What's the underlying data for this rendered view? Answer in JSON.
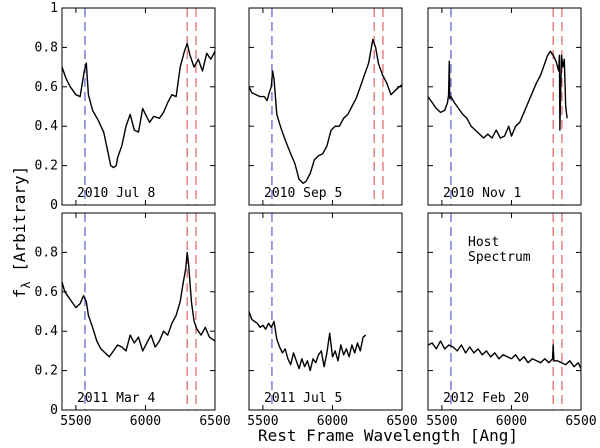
{
  "figure": {
    "ylabel_main": "f",
    "ylabel_sub": "λ",
    "ylabel_rest": " [Arbitrary]",
    "xlabel": "Rest Frame Wavelength [Ang]"
  },
  "chart_data": {
    "type": "line",
    "layout": "2 rows x 3 columns, shared axes",
    "xlim": [
      5400,
      6500
    ],
    "ylim": [
      0,
      1
    ],
    "x_ticks": [
      "5500",
      "6000",
      "6500"
    ],
    "y_ticks": [
      "0",
      "0.2",
      "0.4",
      "0.6",
      "0.8",
      "1"
    ],
    "colors": {
      "spectrum": "#000000",
      "blue_line": "#5b5bd6",
      "red_line": "#e06262"
    },
    "panels": [
      {
        "label": "2010 Jul 8",
        "blue_lines": [
          5565
        ],
        "red_lines": [
          6300,
          6363
        ],
        "annotation": "",
        "x": [
          5400,
          5430,
          5460,
          5500,
          5530,
          5560,
          5575,
          5590,
          5620,
          5660,
          5700,
          5730,
          5750,
          5770,
          5790,
          5800,
          5830,
          5860,
          5890,
          5920,
          5950,
          5980,
          6000,
          6030,
          6060,
          6100,
          6130,
          6160,
          6190,
          6220,
          6250,
          6280,
          6300,
          6320,
          6350,
          6380,
          6410,
          6440,
          6470,
          6500
        ],
        "y": [
          0.7,
          0.64,
          0.6,
          0.56,
          0.55,
          0.68,
          0.72,
          0.56,
          0.48,
          0.43,
          0.37,
          0.27,
          0.2,
          0.19,
          0.2,
          0.24,
          0.3,
          0.4,
          0.46,
          0.38,
          0.37,
          0.49,
          0.46,
          0.42,
          0.45,
          0.44,
          0.47,
          0.52,
          0.56,
          0.55,
          0.7,
          0.78,
          0.82,
          0.76,
          0.7,
          0.74,
          0.68,
          0.77,
          0.74,
          0.78
        ]
      },
      {
        "label": "2010 Sep 5",
        "blue_lines": [
          5565
        ],
        "red_lines": [
          6300,
          6363
        ],
        "annotation": "",
        "x": [
          5400,
          5420,
          5450,
          5480,
          5510,
          5530,
          5545,
          5560,
          5570,
          5580,
          5600,
          5630,
          5660,
          5700,
          5730,
          5760,
          5790,
          5810,
          5840,
          5870,
          5900,
          5930,
          5960,
          5990,
          6020,
          6050,
          6080,
          6110,
          6140,
          6170,
          6200,
          6230,
          6260,
          6280,
          6290,
          6310,
          6330,
          6360,
          6390,
          6420,
          6450,
          6480,
          6500
        ],
        "y": [
          0.6,
          0.57,
          0.56,
          0.55,
          0.55,
          0.53,
          0.57,
          0.6,
          0.68,
          0.64,
          0.46,
          0.39,
          0.33,
          0.26,
          0.21,
          0.13,
          0.11,
          0.12,
          0.16,
          0.23,
          0.25,
          0.26,
          0.3,
          0.38,
          0.4,
          0.4,
          0.44,
          0.46,
          0.5,
          0.54,
          0.6,
          0.66,
          0.72,
          0.8,
          0.84,
          0.8,
          0.72,
          0.66,
          0.62,
          0.56,
          0.58,
          0.6,
          0.61
        ]
      },
      {
        "label": "2010 Nov 1",
        "blue_lines": [
          5565
        ],
        "red_lines": [
          6300,
          6363
        ],
        "annotation": "",
        "x": [
          5400,
          5430,
          5460,
          5490,
          5520,
          5540,
          5548,
          5553,
          5556,
          5565,
          5590,
          5620,
          5650,
          5680,
          5710,
          5740,
          5770,
          5800,
          5830,
          5860,
          5890,
          5920,
          5950,
          5980,
          6000,
          6030,
          6060,
          6090,
          6120,
          6150,
          6180,
          6210,
          6240,
          6260,
          6280,
          6300,
          6320,
          6340,
          6345,
          6348,
          6350,
          6360,
          6370,
          6380,
          6390,
          6400
        ],
        "y": [
          0.55,
          0.52,
          0.49,
          0.47,
          0.48,
          0.52,
          0.56,
          0.73,
          0.54,
          0.55,
          0.52,
          0.49,
          0.46,
          0.44,
          0.4,
          0.38,
          0.36,
          0.34,
          0.36,
          0.34,
          0.38,
          0.34,
          0.35,
          0.4,
          0.35,
          0.4,
          0.42,
          0.47,
          0.52,
          0.57,
          0.62,
          0.66,
          0.72,
          0.76,
          0.78,
          0.76,
          0.73,
          0.68,
          0.76,
          0.38,
          0.44,
          0.76,
          0.7,
          0.74,
          0.5,
          0.44
        ]
      },
      {
        "label": "2011 Mar 4",
        "blue_lines": [
          5565
        ],
        "red_lines": [
          6300,
          6363
        ],
        "annotation": "",
        "x": [
          5400,
          5420,
          5440,
          5470,
          5500,
          5530,
          5555,
          5575,
          5590,
          5620,
          5650,
          5680,
          5710,
          5740,
          5770,
          5800,
          5830,
          5860,
          5890,
          5920,
          5950,
          5980,
          6010,
          6040,
          6070,
          6100,
          6130,
          6160,
          6190,
          6220,
          6250,
          6270,
          6290,
          6300,
          6310,
          6330,
          6350,
          6370,
          6400,
          6430,
          6460,
          6500
        ],
        "y": [
          0.65,
          0.6,
          0.58,
          0.55,
          0.52,
          0.54,
          0.58,
          0.55,
          0.48,
          0.42,
          0.35,
          0.31,
          0.29,
          0.27,
          0.3,
          0.33,
          0.32,
          0.3,
          0.38,
          0.34,
          0.37,
          0.3,
          0.34,
          0.38,
          0.32,
          0.35,
          0.4,
          0.38,
          0.44,
          0.48,
          0.55,
          0.64,
          0.72,
          0.8,
          0.74,
          0.55,
          0.45,
          0.41,
          0.38,
          0.42,
          0.37,
          0.35
        ]
      },
      {
        "label": "2011 Jul 5",
        "blue_lines": [
          5565
        ],
        "red_lines": [],
        "annotation": "",
        "x": [
          5400,
          5420,
          5440,
          5460,
          5480,
          5500,
          5520,
          5540,
          5560,
          5580,
          5600,
          5620,
          5640,
          5660,
          5680,
          5700,
          5720,
          5740,
          5760,
          5780,
          5800,
          5820,
          5840,
          5860,
          5880,
          5900,
          5920,
          5940,
          5960,
          5980,
          6000,
          6020,
          6040,
          6060,
          6080,
          6100,
          6120,
          6140,
          6160,
          6180,
          6200,
          6220,
          6240
        ],
        "y": [
          0.5,
          0.46,
          0.45,
          0.44,
          0.42,
          0.43,
          0.41,
          0.44,
          0.42,
          0.45,
          0.36,
          0.32,
          0.29,
          0.31,
          0.26,
          0.23,
          0.29,
          0.25,
          0.21,
          0.26,
          0.22,
          0.25,
          0.2,
          0.26,
          0.24,
          0.28,
          0.3,
          0.22,
          0.29,
          0.39,
          0.27,
          0.3,
          0.25,
          0.33,
          0.28,
          0.31,
          0.27,
          0.33,
          0.29,
          0.34,
          0.3,
          0.37,
          0.38
        ]
      },
      {
        "label": "2012 Feb 20",
        "blue_lines": [
          5565
        ],
        "red_lines": [
          6300,
          6363
        ],
        "annotation": "Host\nSpectrum",
        "x": [
          5400,
          5430,
          5460,
          5490,
          5520,
          5550,
          5580,
          5610,
          5640,
          5670,
          5700,
          5730,
          5760,
          5790,
          5820,
          5850,
          5880,
          5910,
          5940,
          5970,
          6000,
          6030,
          6060,
          6090,
          6120,
          6150,
          6180,
          6210,
          6240,
          6270,
          6295,
          6300,
          6305,
          6330,
          6360,
          6390,
          6420,
          6450,
          6480,
          6500
        ],
        "y": [
          0.33,
          0.34,
          0.31,
          0.35,
          0.31,
          0.33,
          0.32,
          0.3,
          0.33,
          0.29,
          0.32,
          0.29,
          0.31,
          0.28,
          0.3,
          0.27,
          0.29,
          0.26,
          0.28,
          0.27,
          0.26,
          0.28,
          0.25,
          0.27,
          0.24,
          0.26,
          0.25,
          0.24,
          0.26,
          0.24,
          0.26,
          0.33,
          0.25,
          0.25,
          0.24,
          0.23,
          0.25,
          0.22,
          0.24,
          0.21
        ]
      }
    ]
  }
}
